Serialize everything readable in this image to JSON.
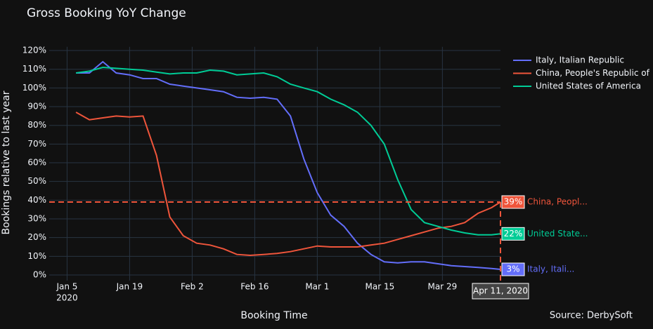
{
  "chart_data": {
    "type": "line",
    "title": "Gross Booking YoY Change",
    "x_label": "Booking Time",
    "y_label": "Bookings relative to last year",
    "source": "Source: DerbySoft",
    "x": [
      "2020-01-07",
      "2020-01-10",
      "2020-01-13",
      "2020-01-16",
      "2020-01-19",
      "2020-01-22",
      "2020-01-25",
      "2020-01-28",
      "2020-01-31",
      "2020-02-03",
      "2020-02-06",
      "2020-02-09",
      "2020-02-12",
      "2020-02-15",
      "2020-02-18",
      "2020-02-21",
      "2020-02-24",
      "2020-02-27",
      "2020-03-01",
      "2020-03-04",
      "2020-03-07",
      "2020-03-10",
      "2020-03-13",
      "2020-03-16",
      "2020-03-19",
      "2020-03-22",
      "2020-03-25",
      "2020-03-28",
      "2020-03-31",
      "2020-04-03",
      "2020-04-06",
      "2020-04-09",
      "2020-04-11"
    ],
    "series": [
      {
        "name": "Italy, Italian Republic",
        "color": "#636efa",
        "end_name": "Italy, Itali...",
        "end_label": "3%",
        "values": [
          108,
          108,
          114,
          108,
          107,
          105,
          105,
          102,
          101,
          100,
          99,
          98,
          95,
          94.5,
          95,
          94,
          85,
          62,
          44,
          32,
          26,
          17,
          11,
          7,
          6.5,
          7,
          7,
          6,
          5,
          4.5,
          4,
          3.5,
          3
        ]
      },
      {
        "name": "China, People's Republic of",
        "color": "#ef553b",
        "end_name": "China, Peopl...",
        "end_label": "39%",
        "values": [
          87,
          83,
          84,
          85,
          84.5,
          85,
          64,
          31,
          21,
          17,
          16,
          14,
          11,
          10.5,
          11,
          11.5,
          12.5,
          14,
          15.5,
          15,
          15,
          15,
          16,
          17,
          19,
          21,
          23,
          25,
          26,
          28,
          33,
          36,
          39
        ]
      },
      {
        "name": "United States of America",
        "color": "#00cc96",
        "end_name": "United State...",
        "end_label": "22%",
        "values": [
          108,
          109,
          111,
          110.5,
          110,
          109.5,
          108.5,
          107.5,
          108,
          108,
          109.5,
          109,
          107,
          107.5,
          108,
          106,
          102,
          100,
          98,
          94,
          91,
          87,
          80,
          70,
          51,
          35,
          28,
          26,
          24,
          22.5,
          21.5,
          21.5,
          22
        ]
      }
    ],
    "hover_x_label": "Apr 11, 2020",
    "hover_series": 1,
    "xlim": [
      "2020-01-01",
      "2020-04-11"
    ],
    "xticks": [
      {
        "value": "2020-01-05",
        "label": "Jan 5"
      },
      {
        "value": "2020-01-19",
        "label": "Jan 19"
      },
      {
        "value": "2020-02-02",
        "label": "Feb 2"
      },
      {
        "value": "2020-02-16",
        "label": "Feb 16"
      },
      {
        "value": "2020-03-01",
        "label": "Mar 1"
      },
      {
        "value": "2020-03-15",
        "label": "Mar 15"
      },
      {
        "value": "2020-03-29",
        "label": "Mar 29"
      }
    ],
    "x_year_label": "2020",
    "ylim": [
      -3,
      122
    ],
    "yticks": [
      {
        "value": 0,
        "label": "0%"
      },
      {
        "value": 10,
        "label": "10%"
      },
      {
        "value": 20,
        "label": "20%"
      },
      {
        "value": 30,
        "label": "30%"
      },
      {
        "value": 40,
        "label": "40%"
      },
      {
        "value": 50,
        "label": "50%"
      },
      {
        "value": 60,
        "label": "60%"
      },
      {
        "value": 70,
        "label": "70%"
      },
      {
        "value": 80,
        "label": "80%"
      },
      {
        "value": 90,
        "label": "90%"
      },
      {
        "value": 100,
        "label": "100%"
      },
      {
        "value": 110,
        "label": "110%"
      },
      {
        "value": 120,
        "label": "120%"
      }
    ],
    "grid": true,
    "legend": "right"
  }
}
